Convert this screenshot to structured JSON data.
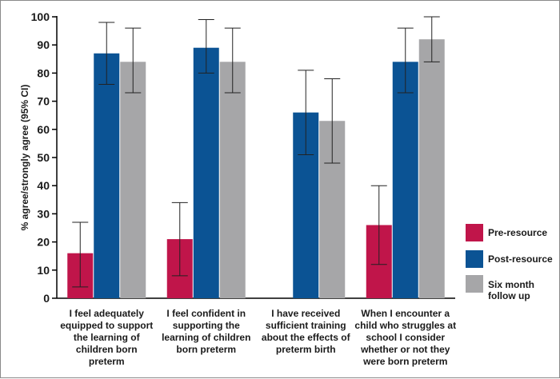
{
  "chart_data": {
    "type": "bar",
    "ylabel": "% agree/strongly agree (95% CI)",
    "ylim": [
      0,
      100
    ],
    "ytick_step": 10,
    "grid": false,
    "legend_position": "right",
    "categories": [
      [
        "I feel adequately",
        "equipped to support",
        "the learning of",
        "children born",
        "preterm"
      ],
      [
        "I feel confident in",
        "supporting the",
        "learning of children",
        "born preterm"
      ],
      [
        "I have received",
        "sufficient training",
        "about the effects of",
        "preterm birth"
      ],
      [
        "When I encounter a",
        "child who struggles at",
        "school I consider",
        "whether or not they",
        "were born preterm"
      ]
    ],
    "series": [
      {
        "name": "Pre-resource",
        "color": "#c0154a",
        "values": [
          16,
          21,
          null,
          26
        ],
        "ci_low": [
          4,
          8,
          null,
          12
        ],
        "ci_high": [
          27,
          34,
          null,
          40
        ]
      },
      {
        "name": "Post-resource",
        "color": "#0b5394",
        "values": [
          87,
          89,
          66,
          84
        ],
        "ci_low": [
          76,
          80,
          51,
          73
        ],
        "ci_high": [
          98,
          99,
          81,
          96
        ]
      },
      {
        "name": [
          "Six month",
          "follow up"
        ],
        "color": "#a6a6a8",
        "values": [
          84,
          84,
          63,
          92
        ],
        "ci_low": [
          73,
          73,
          48,
          84
        ],
        "ci_high": [
          96,
          96,
          78,
          100
        ]
      }
    ]
  }
}
